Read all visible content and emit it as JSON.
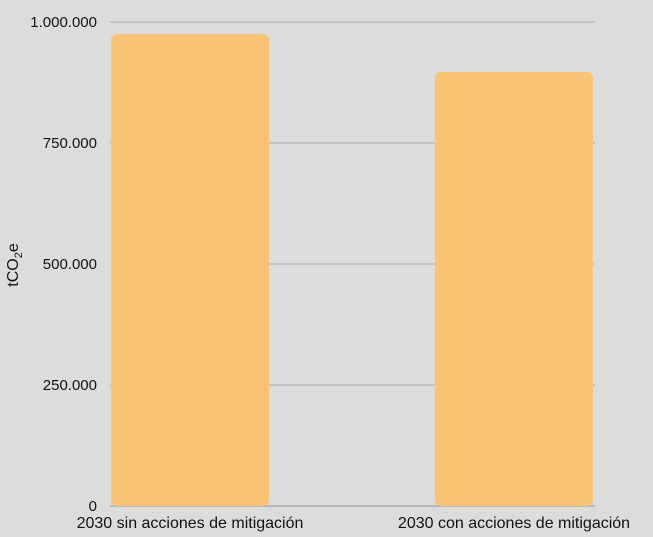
{
  "chart_data": {
    "type": "bar",
    "title": "",
    "xlabel": "",
    "ylabel": "tCO₂e",
    "categories": [
      "2030 sin acciones de mitigación",
      "2030 con acciones de mitigación"
    ],
    "values": [
      975000,
      897000
    ],
    "ylim": [
      0,
      1000000
    ],
    "yticks": [
      0,
      250000,
      500000,
      750000,
      1000000
    ],
    "ytick_labels": [
      "0",
      "250.000",
      "500.000",
      "750.000",
      "1.000.000"
    ],
    "grid": "horizontal",
    "legend": "none",
    "colors": {
      "bar": "#fbc374",
      "background": "#dcdcdc",
      "grid": "#9e9e9e"
    }
  }
}
